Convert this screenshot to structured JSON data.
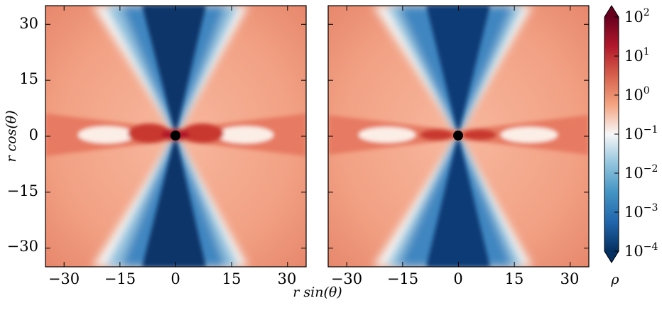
{
  "chart_data": [
    {
      "type": "heatmap",
      "panel": "left",
      "quantity": "density rho",
      "xlabel": "r sin(θ)",
      "ylabel": "r cos(θ)",
      "xlim": [
        -35,
        35
      ],
      "ylim": [
        -35,
        35
      ],
      "x_ticks": [
        "−30",
        "−15",
        "0",
        "15",
        "30"
      ],
      "y_ticks": [
        "30",
        "15",
        "0",
        "−15",
        "−30"
      ],
      "central_object": {
        "x": 0,
        "y": 0,
        "color": "#000000"
      }
    },
    {
      "type": "heatmap",
      "panel": "right",
      "quantity": "density rho",
      "xlim": [
        -35,
        35
      ],
      "ylim": [
        -35,
        35
      ],
      "x_ticks": [
        "−30",
        "−15",
        "0",
        "15",
        "30"
      ],
      "central_object": {
        "x": 0,
        "y": 0,
        "color": "#000000"
      }
    }
  ],
  "colorbar": {
    "label": "ρ",
    "scale": "log",
    "range": [
      0.0001,
      100
    ],
    "ticks": [
      {
        "base": "10",
        "exp": "2"
      },
      {
        "base": "10",
        "exp": "1"
      },
      {
        "base": "10",
        "exp": "0"
      },
      {
        "base": "10",
        "exp": "−1"
      },
      {
        "base": "10",
        "exp": "−2"
      },
      {
        "base": "10",
        "exp": "−3"
      },
      {
        "base": "10",
        "exp": "−4"
      }
    ],
    "colormap": [
      "#053061",
      "#2166ac",
      "#4393c3",
      "#92c5de",
      "#f7f7f7",
      "#f4a582",
      "#d6604d",
      "#b2182b",
      "#67001f"
    ]
  },
  "labels": {
    "ylabel": "r cos(θ)",
    "xlabel": "r sin(θ)",
    "cbar_label": "ρ"
  }
}
